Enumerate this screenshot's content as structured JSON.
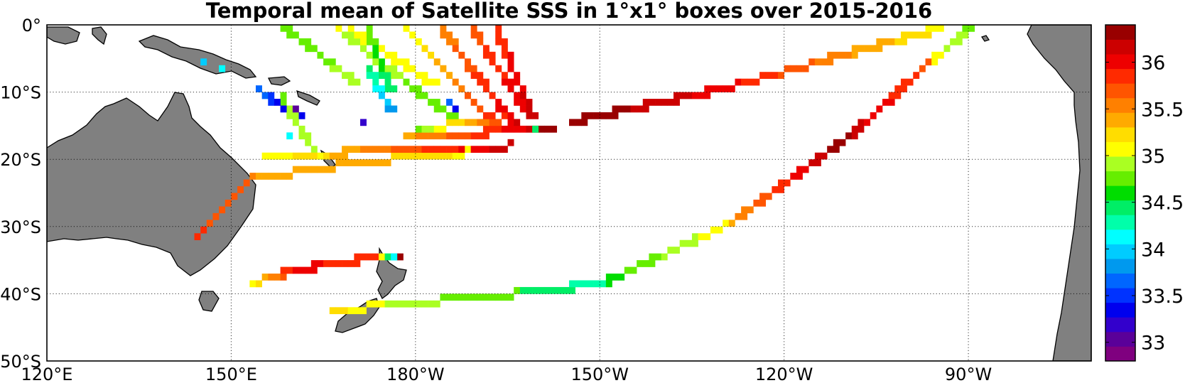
{
  "chart_data": {
    "type": "heatmap",
    "title": "Temporal mean of Satellite SSS in 1°x1° boxes over 2015-2016",
    "x_ticks": [
      "120°E",
      "150°E",
      "180°W",
      "150°W",
      "120°W",
      "90°W"
    ],
    "y_ticks": [
      "0°",
      "10°S",
      "20°S",
      "30°S",
      "40°S",
      "50°S"
    ],
    "xlim_deg_east": [
      120,
      290
    ],
    "ylim_deg_lat": [
      -50,
      0
    ],
    "grid": "dotted",
    "colorbar": {
      "placement": "right",
      "range": [
        32.8,
        36.4
      ],
      "ticks": [
        "33",
        "33.5",
        "34",
        "34.5",
        "35",
        "35.5",
        "36"
      ],
      "tick_values": [
        33,
        33.5,
        34,
        34.5,
        35,
        35.5,
        36
      ],
      "colors": [
        "#7f007f",
        "#5a0099",
        "#3300cc",
        "#0000ee",
        "#0033ff",
        "#0066ff",
        "#0099ee",
        "#00ccff",
        "#00ffff",
        "#00ffaa",
        "#00ee66",
        "#00dd00",
        "#66ee00",
        "#aaff22",
        "#ffff00",
        "#ffdd00",
        "#ffaa00",
        "#ff8000",
        "#ff5500",
        "#ff2a00",
        "#ee0000",
        "#cc0000",
        "#990000"
      ]
    },
    "tracks": [
      {
        "from": [
          153,
          -38.5
        ],
        "to": [
          160,
          -36.5
        ],
        "salinity": [
          35.1,
          36.0
        ]
      },
      {
        "from": [
          160,
          -36.5
        ],
        "to": [
          173.5,
          -34.5
        ],
        "salinity": [
          36.0,
          35.8
        ]
      },
      {
        "from": [
          173.5,
          -34.5
        ],
        "to": [
          176,
          -35
        ],
        "salinity": [
          35.3,
          34.0
        ]
      },
      {
        "from": [
          144,
          -32
        ],
        "to": [
          153,
          -23
        ],
        "salinity": [
          35.8,
          35.6
        ]
      },
      {
        "from": [
          153,
          -23
        ],
        "to": [
          170,
          -20.5
        ],
        "salinity": [
          35.3,
          35.4
        ]
      },
      {
        "from": [
          170,
          -20.5
        ],
        "to": [
          188,
          -19
        ],
        "salinity": [
          35.4,
          35.1
        ]
      },
      {
        "from": [
          158,
          -11
        ],
        "to": [
          164,
          -19.5
        ],
        "salinity": [
          34.8,
          35.0
        ]
      },
      {
        "from": [
          154,
          -9.5
        ],
        "to": [
          160,
          -13.5
        ],
        "salinity": [
          33.7,
          33.1
        ]
      },
      {
        "from": [
          155,
          -19.5
        ],
        "to": [
          195,
          -18
        ],
        "salinity": [
          35.0,
          36.2
        ]
      },
      {
        "from": [
          178,
          -17
        ],
        "to": [
          198,
          -15.5
        ],
        "salinity": [
          35.4,
          36.1
        ]
      },
      {
        "from": [
          180,
          -15.5
        ],
        "to": [
          194,
          -14
        ],
        "salinity": [
          34.8,
          35.8
        ]
      },
      {
        "from": [
          158.5,
          -0.5
        ],
        "to": [
          170,
          -8.5
        ],
        "salinity": [
          34.7,
          34.9
        ]
      },
      {
        "from": [
          172,
          -0.5
        ],
        "to": [
          176,
          -10
        ],
        "salinity": [
          34.8,
          34.4
        ]
      },
      {
        "from": [
          172.5,
          -7
        ],
        "to": [
          176,
          -13
        ],
        "salinity": [
          34.4,
          33.8
        ]
      },
      {
        "from": [
          167,
          -0.5
        ],
        "to": [
          186,
          -14
        ],
        "salinity": [
          35.0,
          34.7
        ]
      },
      {
        "from": [
          169,
          -0.5
        ],
        "to": [
          183,
          -9
        ],
        "salinity": [
          35.1,
          35.0
        ]
      },
      {
        "from": [
          178,
          -0.5
        ],
        "to": [
          192,
          -14
        ],
        "salinity": [
          35.0,
          35.9
        ]
      },
      {
        "from": [
          184,
          -0.5
        ],
        "to": [
          196,
          -15
        ],
        "salinity": [
          35.5,
          36.1
        ]
      },
      {
        "from": [
          189,
          -0.5
        ],
        "to": [
          198,
          -13
        ],
        "salinity": [
          35.7,
          36.1
        ]
      },
      {
        "from": [
          193,
          -0.5
        ],
        "to": [
          199,
          -14
        ],
        "salinity": [
          35.8,
          36.2
        ]
      },
      {
        "from": [
          199,
          -15.5
        ],
        "to": [
          202,
          -15.2
        ],
        "salinity": [
          36.3,
          36.3
        ]
      },
      {
        "from": [
          205,
          -14.5
        ],
        "to": [
          230,
          -9.5
        ],
        "salinity": [
          36.4,
          36.0
        ]
      },
      {
        "from": [
          230,
          -9.5
        ],
        "to": [
          265,
          -0.5
        ],
        "salinity": [
          36.0,
          35.1
        ]
      },
      {
        "from": [
          166,
          -42.5
        ],
        "to": [
          178,
          -41.5
        ],
        "salinity": [
          35.2,
          34.9
        ]
      },
      {
        "from": [
          178,
          -41.5
        ],
        "to": [
          196,
          -40
        ],
        "salinity": [
          34.9,
          34.7
        ]
      },
      {
        "from": [
          196,
          -40
        ],
        "to": [
          210,
          -38.5
        ],
        "salinity": [
          34.5,
          34.3
        ]
      },
      {
        "from": [
          210,
          -38.5
        ],
        "to": [
          230,
          -30
        ],
        "salinity": [
          34.6,
          35.1
        ]
      },
      {
        "from": [
          230,
          -30
        ],
        "to": [
          250,
          -17
        ],
        "salinity": [
          35.4,
          36.4
        ]
      },
      {
        "from": [
          250,
          -17
        ],
        "to": [
          263,
          -6
        ],
        "salinity": [
          36.2,
          35.7
        ]
      },
      {
        "from": [
          263,
          -6
        ],
        "to": [
          270,
          -0.5
        ],
        "salinity": [
          35.1,
          34.8
        ]
      }
    ],
    "outliers": [
      {
        "lon": 177.5,
        "lat": -34.5,
        "salinity": 36.4
      },
      {
        "lon": 176.5,
        "lat": -34.5,
        "salinity": 34.2
      },
      {
        "lon": 171,
        "lat": -15,
        "salinity": 33.2
      },
      {
        "lon": 186,
        "lat": -12.5,
        "salinity": 33.3
      },
      {
        "lon": 185,
        "lat": -11.5,
        "salinity": 33.6
      },
      {
        "lon": 160.5,
        "lat": -12.5,
        "salinity": 33.0
      },
      {
        "lon": 161,
        "lat": -14,
        "salinity": 33.4
      },
      {
        "lon": 148,
        "lat": -7,
        "salinity": 34.1
      },
      {
        "lon": 145.5,
        "lat": -6,
        "salinity": 33.9
      },
      {
        "lon": 199.5,
        "lat": -15.5,
        "salinity": 34.4
      },
      {
        "lon": 159,
        "lat": -16.5,
        "salinity": 34.1
      }
    ],
    "land_color": "#808080"
  }
}
